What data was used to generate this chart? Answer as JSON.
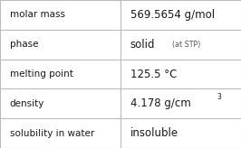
{
  "rows": [
    {
      "label": "molar mass",
      "value": "569.5654 g/mol",
      "type": "plain"
    },
    {
      "label": "phase",
      "value": "solid",
      "value_suffix": "(at STP)",
      "type": "phase"
    },
    {
      "label": "melting point",
      "value": "125.5 °C",
      "type": "plain"
    },
    {
      "label": "density",
      "value": "4.178 g/cm",
      "superscript": "3",
      "type": "super"
    },
    {
      "label": "solubility in water",
      "value": "insoluble",
      "type": "plain"
    }
  ],
  "col_split": 0.5,
  "bg_color": "#ffffff",
  "border_color": "#bbbbbb",
  "text_color": "#1a1a1a",
  "label_fontsize": 7.5,
  "value_fontsize": 8.5,
  "suffix_fontsize": 5.8,
  "super_fontsize": 5.5,
  "figsize": [
    2.66,
    1.64
  ],
  "dpi": 100
}
